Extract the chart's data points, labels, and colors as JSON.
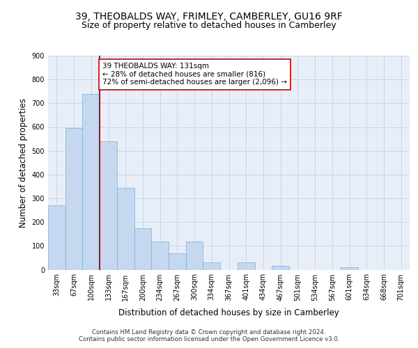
{
  "title_line1": "39, THEOBALDS WAY, FRIMLEY, CAMBERLEY, GU16 9RF",
  "title_line2": "Size of property relative to detached houses in Camberley",
  "bar_values": [
    270,
    595,
    740,
    540,
    345,
    175,
    120,
    70,
    120,
    30,
    0,
    30,
    0,
    15,
    0,
    0,
    0,
    10,
    0,
    0,
    0
  ],
  "categories": [
    "33sqm",
    "67sqm",
    "100sqm",
    "133sqm",
    "167sqm",
    "200sqm",
    "234sqm",
    "267sqm",
    "300sqm",
    "334sqm",
    "367sqm",
    "401sqm",
    "434sqm",
    "467sqm",
    "501sqm",
    "534sqm",
    "567sqm",
    "601sqm",
    "634sqm",
    "668sqm",
    "701sqm"
  ],
  "bar_color": "#c5d8f0",
  "bar_edge_color": "#7aaed4",
  "bar_edge_width": 0.5,
  "vline_color": "#cc0000",
  "annotation_text": "39 THEOBALDS WAY: 131sqm\n← 28% of detached houses are smaller (816)\n72% of semi-detached houses are larger (2,096) →",
  "annotation_box_color": "#ffffff",
  "annotation_box_edge": "#cc0000",
  "xlabel": "Distribution of detached houses by size in Camberley",
  "ylabel": "Number of detached properties",
  "ylim": [
    0,
    900
  ],
  "yticks": [
    0,
    100,
    200,
    300,
    400,
    500,
    600,
    700,
    800,
    900
  ],
  "grid_color": "#c8d4e8",
  "bg_color": "#e8eef8",
  "footer": "Contains HM Land Registry data © Crown copyright and database right 2024.\nContains public sector information licensed under the Open Government Licence v3.0.",
  "title_fontsize": 10,
  "subtitle_fontsize": 9,
  "axis_label_fontsize": 8.5,
  "tick_fontsize": 7,
  "annotation_fontsize": 7.5
}
